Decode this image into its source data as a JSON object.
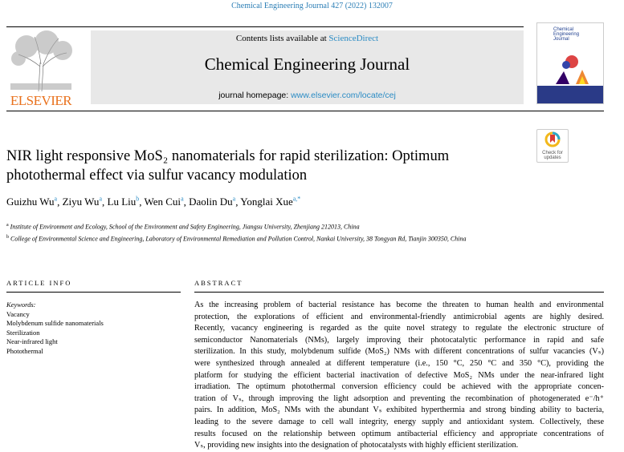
{
  "header": {
    "journal_ref": "Chemical Engineering Journal 427 (2022) 132007",
    "contents_prefix": "Contents lists available at ",
    "contents_link": "ScienceDirect",
    "journal_title": "Chemical Engineering Journal",
    "homepage_prefix": "journal homepage: ",
    "homepage_link": "www.elsevier.com/locate/cej",
    "publisher": "ELSEVIER",
    "cover_title": "Chemical Engineering Journal",
    "check_updates": "Check for updates"
  },
  "article": {
    "title": "NIR light responsive MoS₂ nanomaterials for rapid sterilization: Optimum photothermal effect via sulfur vacancy modulation",
    "authors": [
      {
        "name": "Guizhu Wu",
        "sup": "a"
      },
      {
        "name": "Ziyu Wu",
        "sup": "a"
      },
      {
        "name": "Lu Liu",
        "sup": "b"
      },
      {
        "name": "Wen Cui",
        "sup": "a"
      },
      {
        "name": "Daolin Du",
        "sup": "a"
      },
      {
        "name": "Yonglai Xue",
        "sup": "a,*"
      }
    ],
    "affiliations": [
      {
        "sup": "a",
        "text": "Institute of Environment and Ecology, School of the Environment and Safety Engineering, Jiangsu University, Zhenjiang 212013, China"
      },
      {
        "sup": "b",
        "text": "College of Environmental Science and Engineering, Laboratory of Environmental Remediation and Pollution Control, Nankai University, 38 Tongyan Rd, Tianjin 300350, China"
      }
    ]
  },
  "article_info": {
    "heading": "ARTICLE INFO",
    "keywords_label": "Keywords:",
    "keywords": [
      "Vacancy",
      "Molybdenum sulfide nanomaterials",
      "Sterilization",
      "Near-infrared light",
      "Photothermal"
    ]
  },
  "abstract": {
    "heading": "ABSTRACT",
    "lines": [
      "As the increasing problem of bacterial resistance has become the threaten to human health and environmental",
      "protection, the explorations of efficient and environmental-friendly antimicrobial agents are highly desired.",
      "Recently, vacancy engineering is regarded as the quite novel strategy to regulate the electronic structure of",
      "semiconductor Nanomaterials (NMs), largely improving their photocatalytic performance in rapid and safe",
      "sterilization. In this study, molybdenum sulfide (MoS₂) NMs with different concentrations of sulfur vacancies (Vₛ)",
      "were synthesized through annealed at different temperature (i.e., 150 °C, 250 °C and 350 °C), providing the",
      "platform for studying the efficient bacterial inactivation of defective MoS₂ NMs under the near-infrared light",
      "irradiation. The optimum photothermal conversion efficiency could be achieved with the appropriate concen-",
      "tration of Vₛ, through improving the light adsorption and preventing the recombination of photogenerated e⁻/h⁺",
      "pairs. In addition, MoS₂ NMs with the abundant Vₛ exhibited hyperthermia and strong binding ability to bacteria,",
      "leading to the severe damage to cell wall integrity, energy supply and antioxidant system. Collectively, these",
      "results focused on the relationship between optimum antibacterial efficiency and appropriate concentrations of",
      "Vₛ, providing new insights into the designation of photocatalysts with highly efficient sterilization."
    ]
  }
}
